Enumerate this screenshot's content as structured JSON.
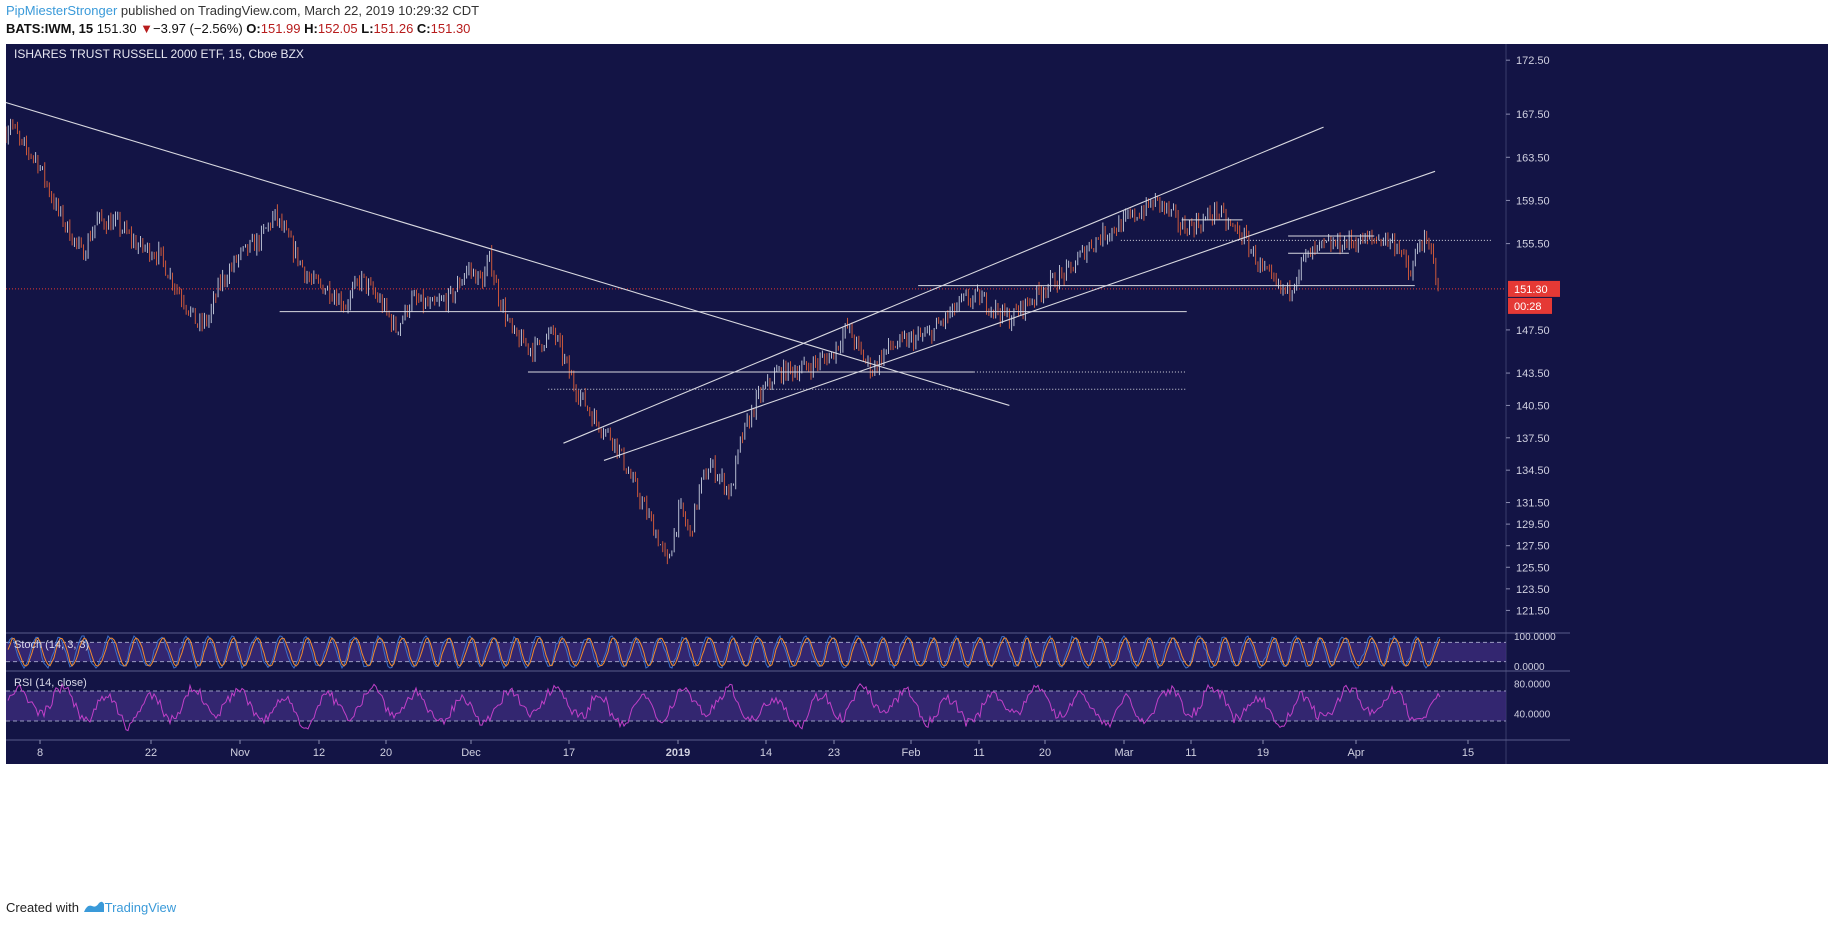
{
  "header": {
    "author": "PipMiesterStronger",
    "published_text": " published on TradingView.com, March 22, 2019 10:29:32 CDT",
    "symbol": "BATS:IWM, 15",
    "last": "151.30",
    "arrow": "▼",
    "change": "−3.97 (−2.56%)",
    "open_label": "O:",
    "open": "151.99",
    "high_label": "H:",
    "high": "152.05",
    "low_label": "L:",
    "low": "151.26",
    "close_label": "C:",
    "close": "151.30"
  },
  "footer": {
    "created_with": "Created with",
    "brand": "TradingView"
  },
  "chart_data": {
    "type": "candlestick",
    "title": "ISHARES TRUST RUSSELL 2000 ETF, 15, Cboe BZX",
    "background": "#131445",
    "colors": {
      "candle_up": "#c8d0e0",
      "candle_down": "#e0603a",
      "trendline": "#d8d8e0",
      "price_line": "#e53935",
      "stoch_k": "#3b6ec8",
      "stoch_d": "#f08a30",
      "rsi": "#c040c8",
      "band": "#3c2a7a"
    },
    "y_axis": {
      "ticks": [
        "172.50",
        "167.50",
        "163.50",
        "159.50",
        "155.50",
        "151.30",
        "147.50",
        "143.50",
        "140.50",
        "137.50",
        "134.50",
        "131.50",
        "129.50",
        "127.50",
        "125.50",
        "123.50",
        "121.50"
      ],
      "ylim": [
        119.5,
        174.0
      ]
    },
    "last_price": 151.3,
    "last_price_label": "151.30",
    "countdown": "00:28",
    "x_axis": {
      "ticks": [
        "8",
        "22",
        "Nov",
        "12",
        "20",
        "Dec",
        "17",
        "2019",
        "14",
        "23",
        "Feb",
        "11",
        "20",
        "Mar",
        "11",
        "19",
        "Apr",
        "15"
      ]
    },
    "price_path": [
      [
        0,
        165.8
      ],
      [
        0.8,
        167.0
      ],
      [
        3,
        164.5
      ],
      [
        6,
        163.4
      ],
      [
        10,
        158.7
      ],
      [
        15,
        154.5
      ],
      [
        18,
        157.7
      ],
      [
        22,
        157.3
      ],
      [
        26,
        155.3
      ],
      [
        30,
        154.6
      ],
      [
        33,
        152.0
      ],
      [
        36,
        149.5
      ],
      [
        38,
        147.8
      ],
      [
        40,
        148.5
      ],
      [
        42,
        151.6
      ],
      [
        46,
        154.3
      ],
      [
        50,
        155.8
      ],
      [
        53,
        158.1
      ],
      [
        55,
        156.5
      ],
      [
        60,
        152.0
      ],
      [
        64,
        151.2
      ],
      [
        67,
        149.8
      ],
      [
        70,
        152.3
      ],
      [
        74,
        150.0
      ],
      [
        77,
        147.5
      ],
      [
        80,
        150.3
      ],
      [
        84,
        149.6
      ],
      [
        88,
        150.6
      ],
      [
        91,
        153.2
      ],
      [
        94,
        152.0
      ],
      [
        95.5,
        154.2
      ],
      [
        97,
        151.0
      ],
      [
        100,
        147.0
      ],
      [
        104,
        145.7
      ],
      [
        108,
        147.3
      ],
      [
        112,
        142.5
      ],
      [
        116,
        139.3
      ],
      [
        120,
        137.3
      ],
      [
        124,
        133.0
      ],
      [
        128,
        129.0
      ],
      [
        130.5,
        125.8
      ],
      [
        133,
        131.0
      ],
      [
        135,
        128.5
      ],
      [
        137,
        133.0
      ],
      [
        139,
        135.0
      ],
      [
        141,
        133.8
      ],
      [
        143,
        132.3
      ],
      [
        145,
        137.2
      ],
      [
        148,
        140.8
      ],
      [
        152,
        143.5
      ],
      [
        158,
        144.0
      ],
      [
        163,
        145.2
      ],
      [
        166,
        147.8
      ],
      [
        169,
        145.0
      ],
      [
        171,
        143.8
      ],
      [
        174,
        145.8
      ],
      [
        178,
        146.5
      ],
      [
        182,
        147.0
      ],
      [
        186,
        148.8
      ],
      [
        189,
        150.2
      ],
      [
        192,
        150.5
      ],
      [
        195,
        149.5
      ],
      [
        198,
        148.5
      ],
      [
        202,
        150.2
      ],
      [
        205,
        151.5
      ],
      [
        210,
        153.0
      ],
      [
        213,
        155.0
      ],
      [
        216,
        156.2
      ],
      [
        220,
        157.3
      ],
      [
        224,
        158.5
      ],
      [
        227,
        159.5
      ],
      [
        230,
        158.2
      ],
      [
        232,
        157.0
      ],
      [
        236,
        157.5
      ],
      [
        239,
        158.6
      ],
      [
        241,
        157.3
      ],
      [
        244,
        156.3
      ],
      [
        248,
        153.0
      ],
      [
        251,
        151.3
      ],
      [
        253,
        151.0
      ],
      [
        256,
        154.0
      ],
      [
        260,
        155.2
      ],
      [
        264,
        155.6
      ],
      [
        268,
        155.8
      ],
      [
        272,
        156.0
      ],
      [
        275,
        155.3
      ],
      [
        277,
        152.2
      ],
      [
        279,
        155.8
      ],
      [
        281,
        155.0
      ],
      [
        283,
        151.3
      ]
    ],
    "trendlines": [
      [
        [
          -3,
          169.0
        ],
        [
          198,
          140.5
        ]
      ],
      [
        [
          110,
          137.0
        ],
        [
          260,
          166.3
        ]
      ],
      [
        [
          118,
          135.4
        ],
        [
          282,
          162.2
        ]
      ]
    ],
    "support_levels": [
      {
        "y": 149.2,
        "x1": 54,
        "x2": 233,
        "style": "solid"
      },
      {
        "y": 143.6,
        "x1": 103,
        "x2": 191,
        "style": "solid"
      },
      {
        "y": 143.6,
        "x1": 191,
        "x2": 233,
        "style": "dotted"
      },
      {
        "y": 142.0,
        "x1": 107,
        "x2": 233,
        "style": "dotted"
      },
      {
        "y": 151.6,
        "x1": 180,
        "x2": 278,
        "style": "solid"
      },
      {
        "y": 155.8,
        "x1": 220,
        "x2": 293,
        "style": "dotted"
      },
      {
        "y": 156.2,
        "x1": 253,
        "x2": 270,
        "style": "solid"
      },
      {
        "y": 154.6,
        "x1": 253,
        "x2": 265,
        "style": "solid"
      },
      {
        "y": 157.7,
        "x1": 232,
        "x2": 244,
        "style": "solid"
      }
    ],
    "stoch": {
      "label": "Stoch (14, 3, 3)",
      "ticks": [
        "100.0000",
        "0.0000"
      ],
      "upper": 80,
      "lower": 20
    },
    "rsi": {
      "label": "RSI (14, close)",
      "ticks": [
        "80.0000",
        "40.0000"
      ],
      "upper": 70,
      "lower": 30
    }
  }
}
